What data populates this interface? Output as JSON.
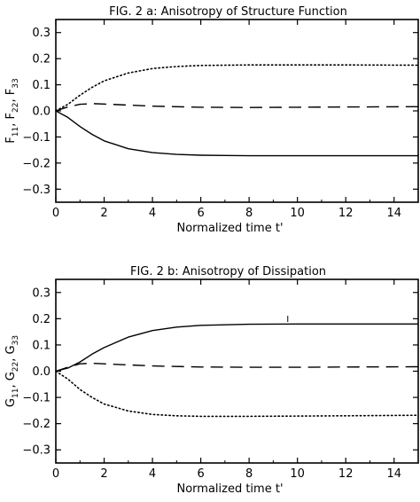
{
  "chart_data": [
    {
      "type": "line",
      "title": "FIG. 2 a: Anisotropy of Structure Function",
      "xlabel": "Normalized time t'",
      "ylabel": "F11, F22, F33",
      "ylabel_parts": [
        "F",
        "11",
        ", F",
        "22",
        ", F",
        "33"
      ],
      "xlim": [
        0,
        15
      ],
      "ylim": [
        -0.35,
        0.35
      ],
      "xticks": [
        0,
        2,
        4,
        6,
        8,
        10,
        12,
        14
      ],
      "xtick_labels": [
        "0",
        "2",
        "4",
        "6",
        "8",
        "10",
        "12",
        "14"
      ],
      "yticks": [
        -0.3,
        -0.2,
        -0.1,
        0.0,
        0.1,
        0.2,
        0.3
      ],
      "ytick_labels": [
        "−0.3",
        "−0.2",
        "−0.1",
        "0.0",
        "0.1",
        "0.2",
        "0.3"
      ],
      "grid": false,
      "series": [
        {
          "style": "dotted",
          "x": [
            0,
            0.5,
            1,
            1.5,
            2,
            3,
            4,
            5,
            6,
            8,
            10,
            12,
            15
          ],
          "y": [
            0.0,
            0.025,
            0.06,
            0.09,
            0.115,
            0.145,
            0.162,
            0.17,
            0.174,
            0.176,
            0.176,
            0.176,
            0.175
          ]
        },
        {
          "style": "dashed",
          "x": [
            0,
            0.5,
            1,
            1.5,
            2,
            3,
            4,
            6,
            8,
            10,
            12,
            15
          ],
          "y": [
            0.0,
            0.015,
            0.025,
            0.028,
            0.026,
            0.022,
            0.018,
            0.014,
            0.013,
            0.014,
            0.015,
            0.016
          ]
        },
        {
          "style": "solid",
          "x": [
            0,
            0.5,
            1,
            1.5,
            2,
            3,
            4,
            5,
            6,
            8,
            10,
            12,
            15
          ],
          "y": [
            0.0,
            -0.025,
            -0.06,
            -0.09,
            -0.115,
            -0.145,
            -0.16,
            -0.167,
            -0.17,
            -0.172,
            -0.172,
            -0.172,
            -0.172
          ]
        }
      ]
    },
    {
      "type": "line",
      "title": "FIG. 2 b: Anisotropy of Dissipation",
      "xlabel": "Normalized time t'",
      "ylabel": "G11, G22, G33",
      "ylabel_parts": [
        "G",
        "11",
        ", G",
        "22",
        ", G",
        "33"
      ],
      "xlim": [
        0,
        15
      ],
      "ylim": [
        -0.35,
        0.35
      ],
      "xticks": [
        0,
        2,
        4,
        6,
        8,
        10,
        12,
        14
      ],
      "xtick_labels": [
        "0",
        "2",
        "4",
        "6",
        "8",
        "10",
        "12",
        "14"
      ],
      "yticks": [
        -0.3,
        -0.2,
        -0.1,
        0.0,
        0.1,
        0.2,
        0.3
      ],
      "ytick_labels": [
        "−0.3",
        "−0.2",
        "−0.1",
        "0.0",
        "0.1",
        "0.2",
        "0.3"
      ],
      "grid": false,
      "series": [
        {
          "style": "solid",
          "x": [
            0,
            0.5,
            1,
            1.5,
            2,
            3,
            4,
            5,
            6,
            8,
            10,
            12,
            15
          ],
          "y": [
            0.0,
            0.012,
            0.035,
            0.065,
            0.09,
            0.13,
            0.155,
            0.168,
            0.175,
            0.179,
            0.18,
            0.18,
            0.18
          ]
        },
        {
          "style": "dashed",
          "x": [
            0,
            0.5,
            1,
            1.5,
            2,
            3,
            4,
            6,
            8,
            10,
            12,
            15
          ],
          "y": [
            0.0,
            0.015,
            0.028,
            0.03,
            0.028,
            0.024,
            0.02,
            0.016,
            0.015,
            0.015,
            0.016,
            0.017
          ]
        },
        {
          "style": "dotted",
          "x": [
            0,
            0.5,
            1,
            1.5,
            2,
            3,
            4,
            5,
            6,
            8,
            10,
            12,
            15
          ],
          "y": [
            0.0,
            -0.03,
            -0.07,
            -0.1,
            -0.125,
            -0.152,
            -0.165,
            -0.17,
            -0.172,
            -0.172,
            -0.171,
            -0.17,
            -0.168
          ]
        }
      ]
    }
  ]
}
